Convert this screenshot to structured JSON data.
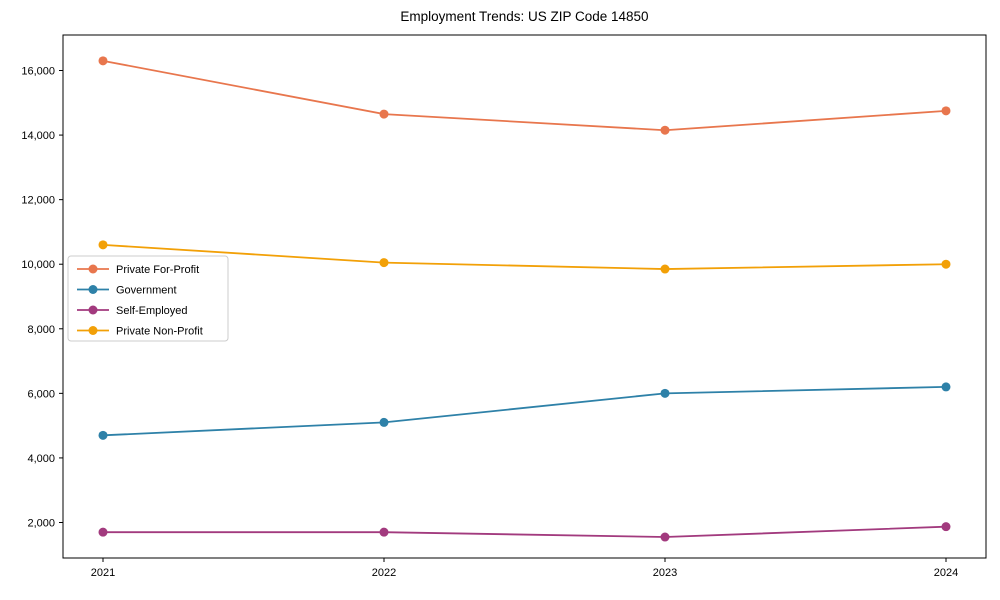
{
  "page": {
    "background": "#ffffff"
  },
  "chart_data": {
    "type": "line",
    "title": "Employment Trends: US ZIP Code 14850",
    "categories": [
      "2021",
      "2022",
      "2023",
      "2024"
    ],
    "series": [
      {
        "name": "Private For-Profit",
        "color": "#e8764d",
        "values": [
          16300,
          14650,
          14150,
          14750
        ]
      },
      {
        "name": "Government",
        "color": "#2e81a8",
        "values": [
          4700,
          5100,
          6000,
          6200
        ]
      },
      {
        "name": "Self-Employed",
        "color": "#a23a7e",
        "values": [
          1700,
          1700,
          1550,
          1870
        ]
      },
      {
        "name": "Private Non-Profit",
        "color": "#f2a007",
        "values": [
          10600,
          10050,
          9850,
          10000
        ]
      }
    ],
    "xlabel": "",
    "ylabel": "",
    "ylim": [
      900,
      17100
    ],
    "yticks": [
      2000,
      4000,
      6000,
      8000,
      10000,
      12000,
      14000,
      16000
    ],
    "ytick_labels": [
      "2,000",
      "4,000",
      "6,000",
      "8,000",
      "10,000",
      "12,000",
      "14,000",
      "16,000"
    ],
    "grid": false,
    "legend_position": "middle-left",
    "marker": "circle",
    "axis_color": "#000000",
    "text_color": "#000000",
    "legend_border_color": "#cccccc"
  }
}
